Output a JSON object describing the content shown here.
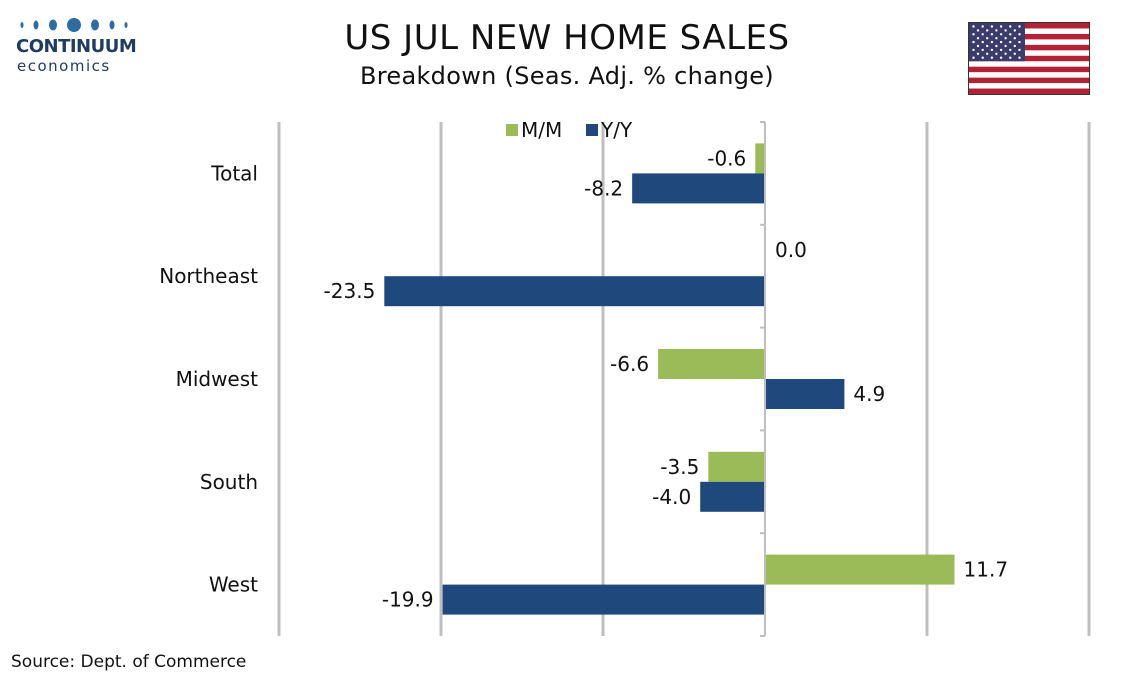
{
  "header": {
    "logo_name": "CONTINUUM",
    "logo_sub": "economics",
    "title": "US JUL NEW HOME SALES",
    "subtitle": "Breakdown (Seas. Adj. % change)"
  },
  "footer": {
    "source": "Source: Dept. of Commerce"
  },
  "flag_icon": "us-flag-icon",
  "chart_data": {
    "type": "bar",
    "orientation": "horizontal",
    "categories": [
      "Total",
      "Northeast",
      "Midwest",
      "South",
      "West"
    ],
    "series": [
      {
        "name": "M/M",
        "color": "#9bbb59",
        "values": [
          -0.6,
          0.0,
          -6.6,
          -3.5,
          11.7
        ],
        "labels": [
          "-0.6",
          "0.0",
          "-6.6",
          "-3.5",
          "11.7"
        ]
      },
      {
        "name": "Y/Y",
        "color": "#1f497d",
        "values": [
          -8.2,
          -23.5,
          4.9,
          -4.0,
          -19.9
        ],
        "labels": [
          "-8.2",
          "-23.5",
          "4.9",
          "-4.0",
          "-19.9"
        ]
      }
    ],
    "xlim": [
      -30,
      20
    ],
    "grid": true,
    "legend": "top-center"
  }
}
